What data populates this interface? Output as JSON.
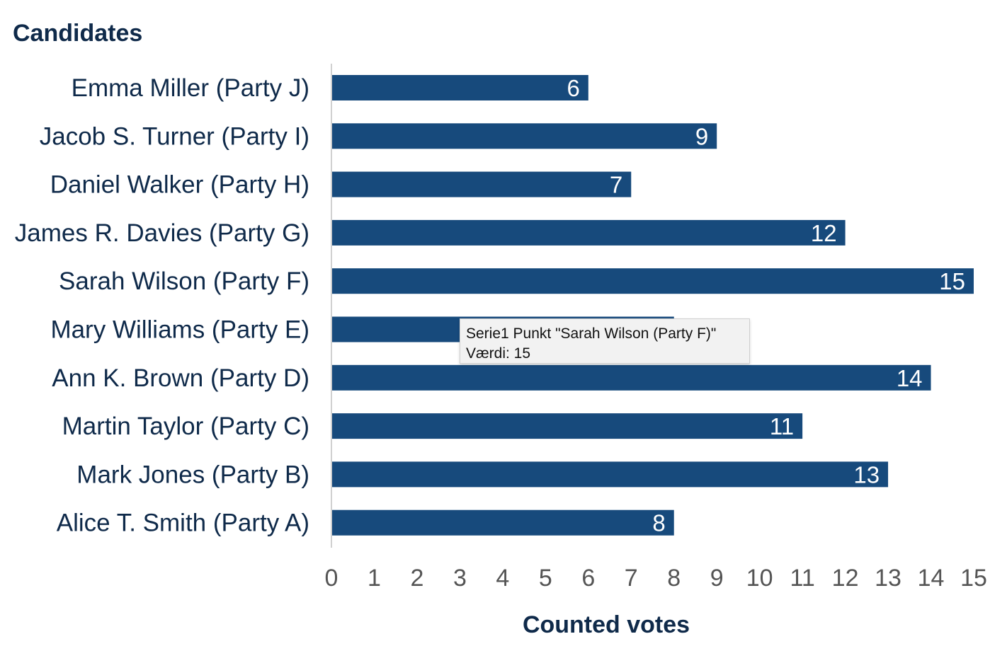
{
  "chart_data": {
    "type": "bar",
    "orientation": "horizontal",
    "ytitle": "Candidates",
    "xlabel": "Counted votes",
    "categories": [
      "Emma Miller (Party J)",
      "Jacob S. Turner (Party I)",
      "Daniel Walker (Party H)",
      "James R. Davies (Party G)",
      "Sarah Wilson (Party F)",
      "Mary Williams (Party E)",
      "Ann K. Brown (Party D)",
      "Martin Taylor (Party C)",
      "Mark Jones (Party B)",
      "Alice T. Smith (Party A)"
    ],
    "values": [
      6,
      9,
      7,
      12,
      15,
      8,
      14,
      11,
      13,
      8
    ],
    "xlim": [
      0,
      15
    ],
    "xticks": [
      0,
      1,
      2,
      3,
      4,
      5,
      6,
      7,
      8,
      9,
      10,
      11,
      12,
      13,
      14,
      15
    ],
    "grid": false,
    "bar_color": "#174a7c",
    "data_labels": true
  },
  "tooltip": {
    "line1": "Serie1 Punkt \"Sarah Wilson (Party F)\"",
    "line2": "Værdi: 15"
  }
}
